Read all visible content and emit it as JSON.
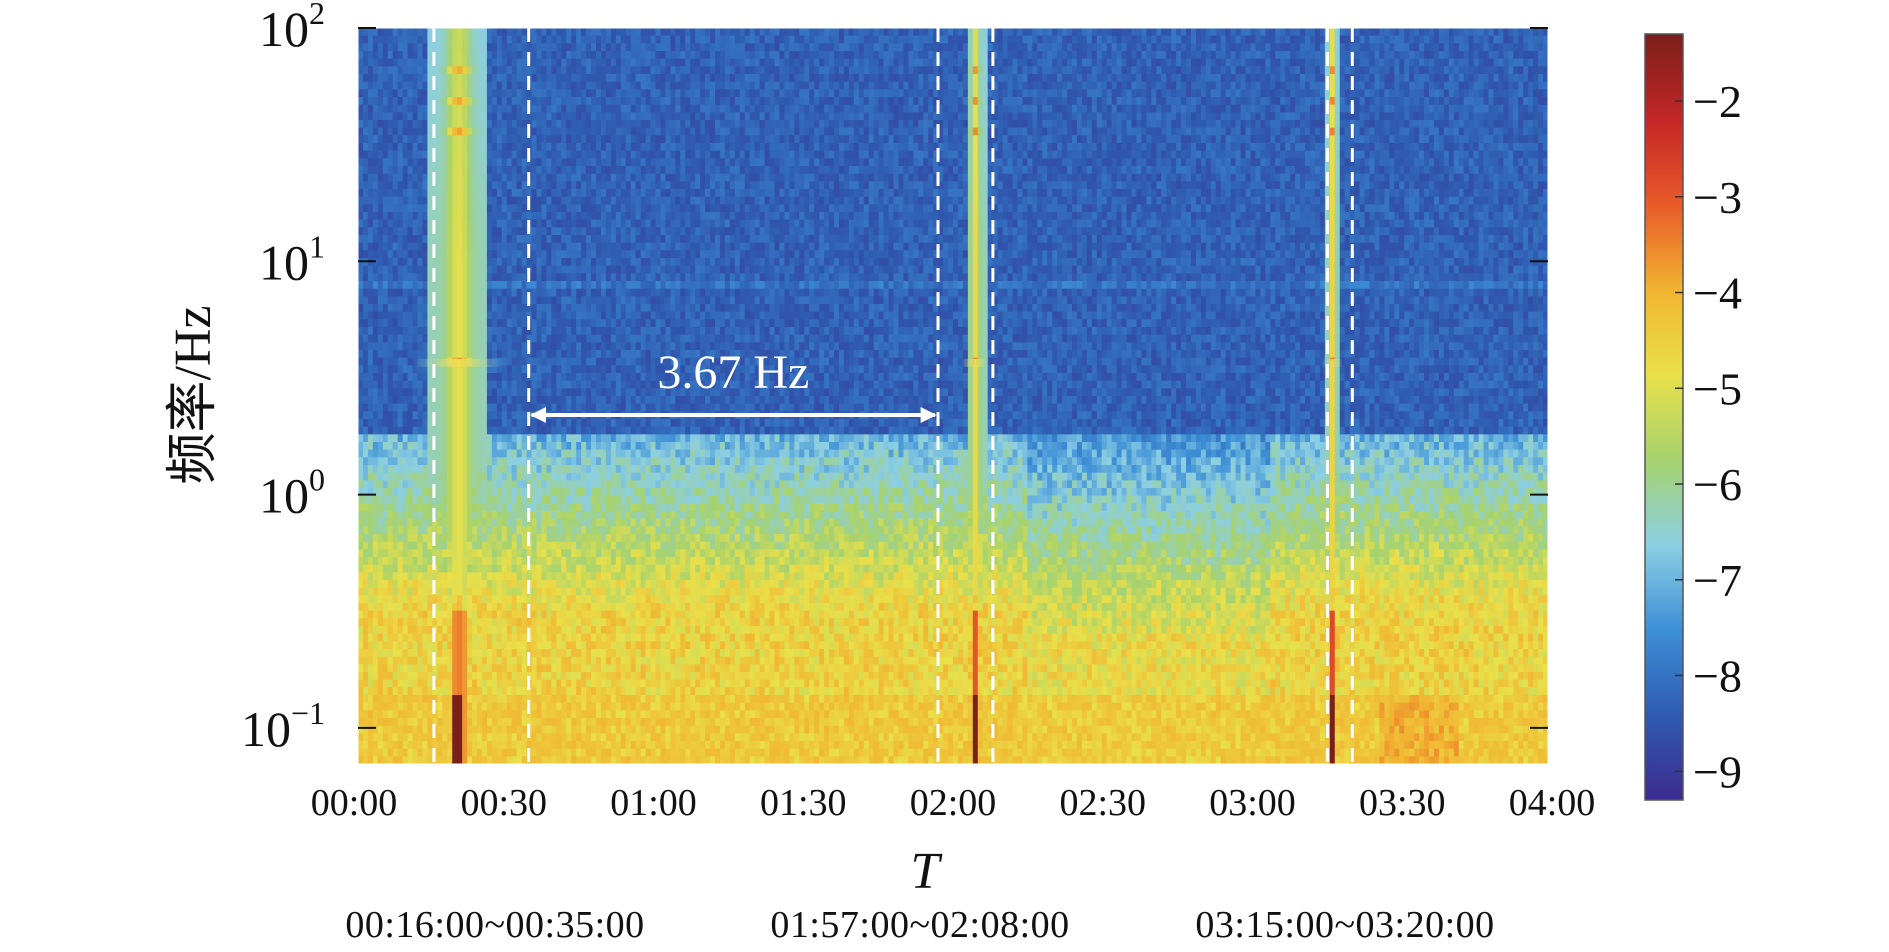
{
  "chart_data": {
    "type": "heatmap",
    "title": "",
    "xlabel": "T",
    "ylabel": "频率/Hz",
    "x_range": [
      "00:00",
      "04:00"
    ],
    "x_tick_labels": [
      "00:00",
      "00:30",
      "01:00",
      "01:30",
      "02:00",
      "02:30",
      "03:00",
      "03:30",
      "04:00"
    ],
    "y_scale": "log",
    "y_range_hz": [
      0.07,
      100
    ],
    "y_tick_values": [
      0.1,
      1,
      10,
      100
    ],
    "y_ticks": [
      {
        "base": "10",
        "exp": "−1"
      },
      {
        "base": "10",
        "exp": "0"
      },
      {
        "base": "10",
        "exp": "1"
      },
      {
        "base": "10",
        "exp": "2"
      }
    ],
    "colorbar": {
      "range": [
        -9.3,
        -1.3
      ],
      "tick_values": [
        -2,
        -3,
        -4,
        -5,
        -6,
        -7,
        -8,
        -9
      ],
      "tick_labels": [
        "−2",
        "−3",
        "−4",
        "−5",
        "−6",
        "−7",
        "−8",
        "−9"
      ],
      "colormap": [
        "#3d2b8e",
        "#2f5bb0",
        "#3d8fd6",
        "#8ccfe3",
        "#a6d26e",
        "#e9e04a",
        "#f1b331",
        "#e85a2a",
        "#c32626",
        "#7a1f1a"
      ]
    },
    "event_windows": [
      {
        "start": "00:16:00",
        "end": "00:35:00",
        "label": "00:16:00~00:35:00"
      },
      {
        "start": "01:57:00",
        "end": "02:08:00",
        "label": "01:57:00~02:08:00"
      },
      {
        "start": "03:15:00",
        "end": "03:20:00",
        "label": "03:15:00~03:20:00"
      }
    ],
    "annotation": {
      "text": "3.67 Hz",
      "from": "00:35:00",
      "to": "01:57:00"
    },
    "highlight_frequency_hz": 3.67,
    "background_floor_hz": 0.14,
    "colors": {
      "window_line": "#ffffff",
      "arrow": "#ffffff"
    }
  }
}
